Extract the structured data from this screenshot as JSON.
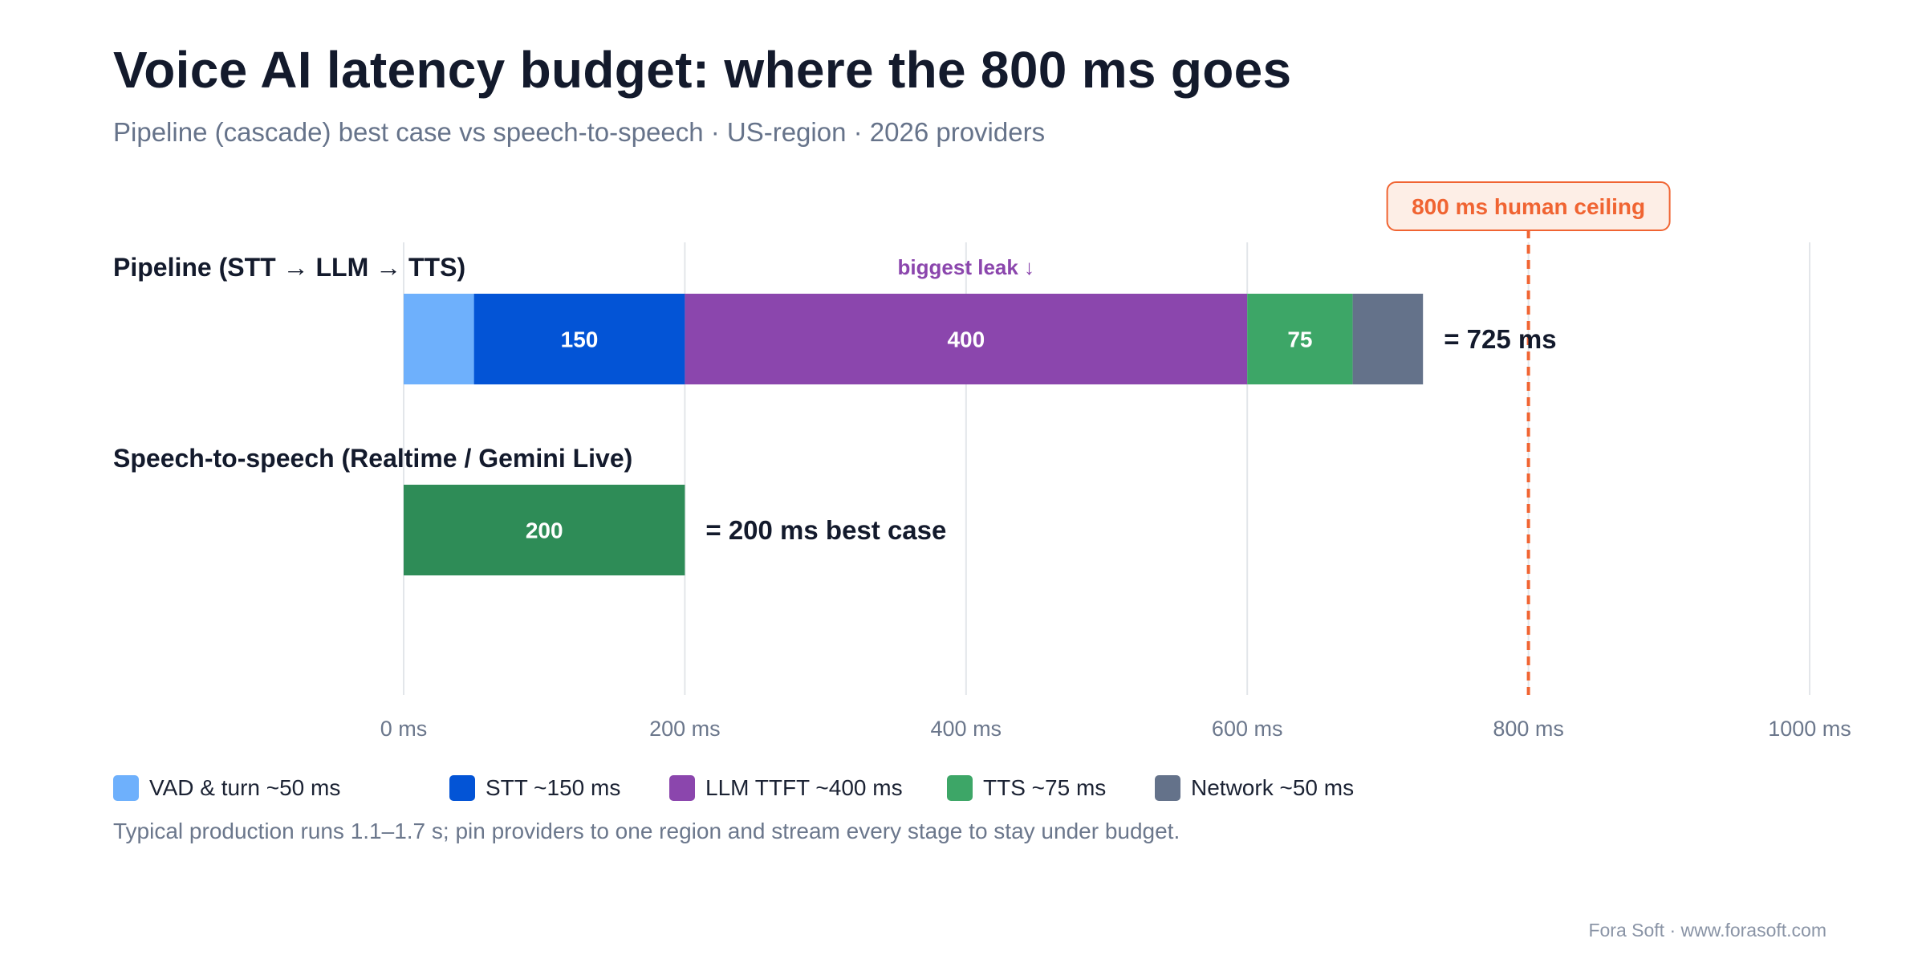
{
  "header": {
    "title": "Voice AI latency budget: where the 800 ms goes",
    "subtitle": "Pipeline (cascade) best case vs speech-to-speech · US-region · 2026 providers"
  },
  "chart_data": {
    "type": "bar",
    "orientation": "horizontal",
    "stacked": true,
    "title": "Voice AI latency budget: where the 800 ms goes",
    "subtitle": "Pipeline (cascade) best case vs speech-to-speech · US-region · 2026 providers",
    "xlim": [
      0,
      1000
    ],
    "x_ticks": [
      0,
      200,
      400,
      600,
      800,
      1000
    ],
    "x_tick_labels": [
      "0 ms",
      "200 ms",
      "400 ms",
      "600 ms",
      "800 ms",
      "1000 ms"
    ],
    "grid": "vertical",
    "categories": [
      "Pipeline (STT → LLM → TTS)",
      "Speech-to-speech (Realtime / Gemini Live)"
    ],
    "series": [
      {
        "name": "VAD & turn ~50 ms",
        "color": "#6eb0fc",
        "values": [
          50,
          0
        ],
        "labels": [
          "",
          ""
        ]
      },
      {
        "name": "STT ~150 ms",
        "color": "#0354d6",
        "values": [
          150,
          0
        ],
        "labels": [
          "150",
          ""
        ]
      },
      {
        "name": "LLM TTFT ~400 ms",
        "color": "#8b46ad",
        "values": [
          400,
          0
        ],
        "labels": [
          "400",
          ""
        ]
      },
      {
        "name": "TTS ~75 ms",
        "color": "#3da667",
        "values": [
          75,
          0
        ],
        "labels": [
          "75",
          ""
        ]
      },
      {
        "name": "Network ~50 ms",
        "color": "#64728a",
        "values": [
          50,
          0
        ],
        "labels": [
          "",
          ""
        ]
      }
    ],
    "speech_to_speech": {
      "value": 200,
      "label": "200",
      "color": "#2e8c57"
    },
    "bar_totals": [
      "= 725 ms",
      "= 200 ms best case"
    ],
    "annotations": {
      "biggest_leak": {
        "text": "biggest leak ↓",
        "x": 400,
        "color": "#8b46ad"
      },
      "ceiling": {
        "text": "800 ms human ceiling",
        "x": 800,
        "color": "#f06432"
      }
    },
    "legend_position": "bottom-left"
  },
  "legend": [
    {
      "label": "VAD & turn ~50 ms",
      "color": "#6eb0fc"
    },
    {
      "label": "STT ~150 ms",
      "color": "#0354d6"
    },
    {
      "label": "LLM TTFT ~400 ms",
      "color": "#8b46ad"
    },
    {
      "label": "TTS ~75 ms",
      "color": "#3da667"
    },
    {
      "label": "Network ~50 ms",
      "color": "#64728a"
    }
  ],
  "footnote": "Typical production runs 1.1–1.7 s; pin providers to one region and stream every stage to stay under budget.",
  "credit": "Fora Soft · www.forasoft.com"
}
